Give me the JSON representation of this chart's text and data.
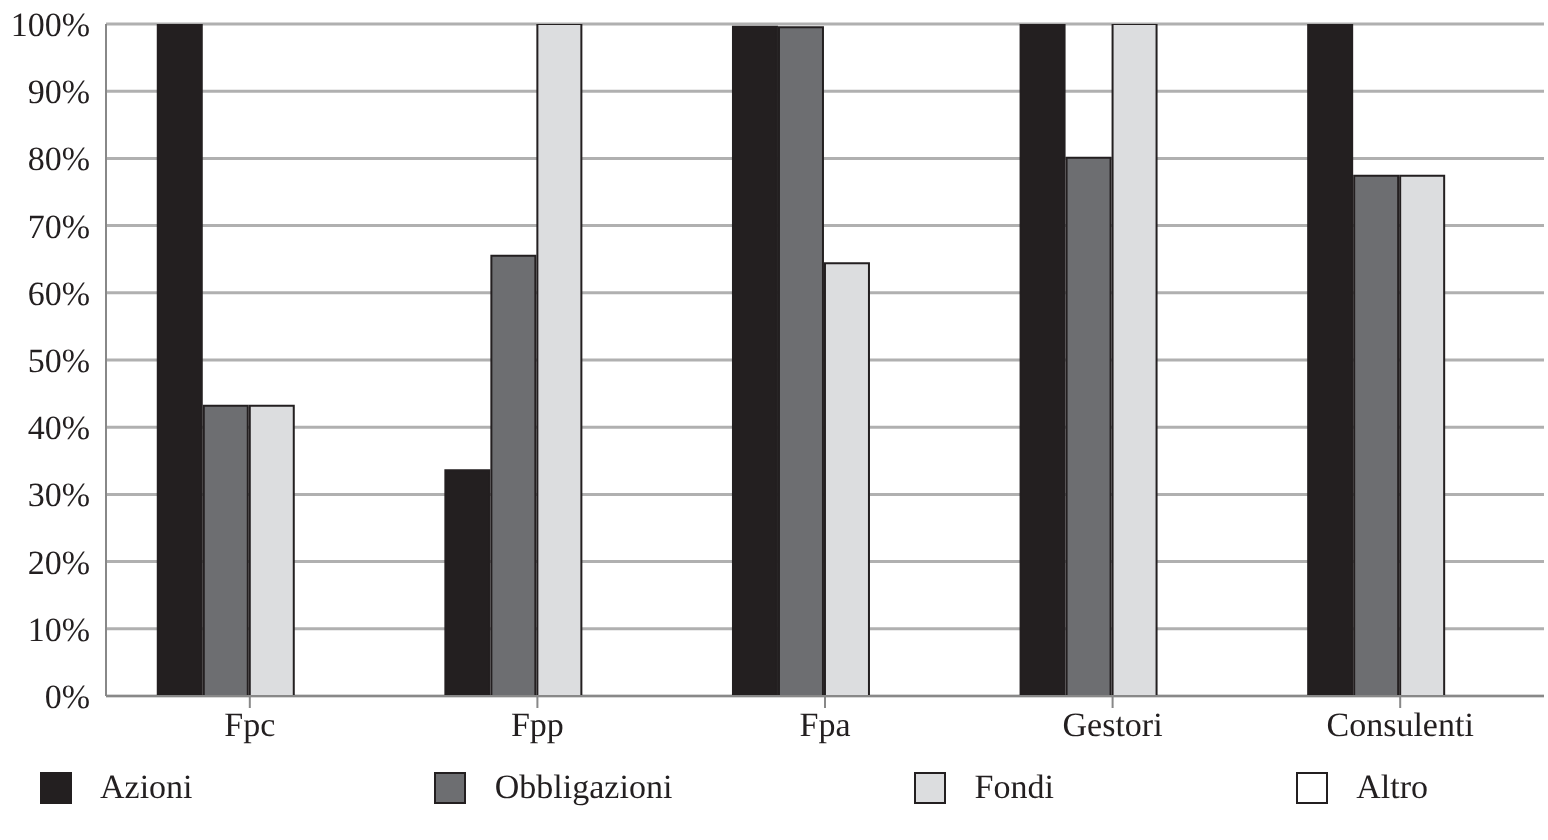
{
  "chart_data": {
    "type": "bar",
    "categories": [
      "Fpc",
      "Fpp",
      "Fpa",
      "Gestori",
      "Consulenti"
    ],
    "series": [
      {
        "name": "Azioni",
        "color": "#231f20",
        "values": [
          100,
          33.6,
          99.6,
          100,
          100
        ]
      },
      {
        "name": "Obbligazioni",
        "color": "#6d6e71",
        "values": [
          43.2,
          65.5,
          99.5,
          80.1,
          77.4
        ]
      },
      {
        "name": "Fondi",
        "color": "#dcdddf",
        "values": [
          43.2,
          100,
          64.4,
          100,
          77.4
        ]
      },
      {
        "name": "Altro",
        "color": "#ffffff",
        "values": [
          null,
          null,
          null,
          null,
          null
        ]
      }
    ],
    "ylim": [
      0,
      100
    ],
    "yticks": [
      {
        "value": 0,
        "label": "0%"
      },
      {
        "value": 10,
        "label": "10%"
      },
      {
        "value": 20,
        "label": "20%"
      },
      {
        "value": 30,
        "label": "30%"
      },
      {
        "value": 40,
        "label": "40%"
      },
      {
        "value": 50,
        "label": "50%"
      },
      {
        "value": 60,
        "label": "60%"
      },
      {
        "value": 70,
        "label": "70%"
      },
      {
        "value": 80,
        "label": "80%"
      },
      {
        "value": 90,
        "label": "90%"
      },
      {
        "value": 100,
        "label": "100%"
      }
    ],
    "grid": "y",
    "legend": "bottom"
  }
}
